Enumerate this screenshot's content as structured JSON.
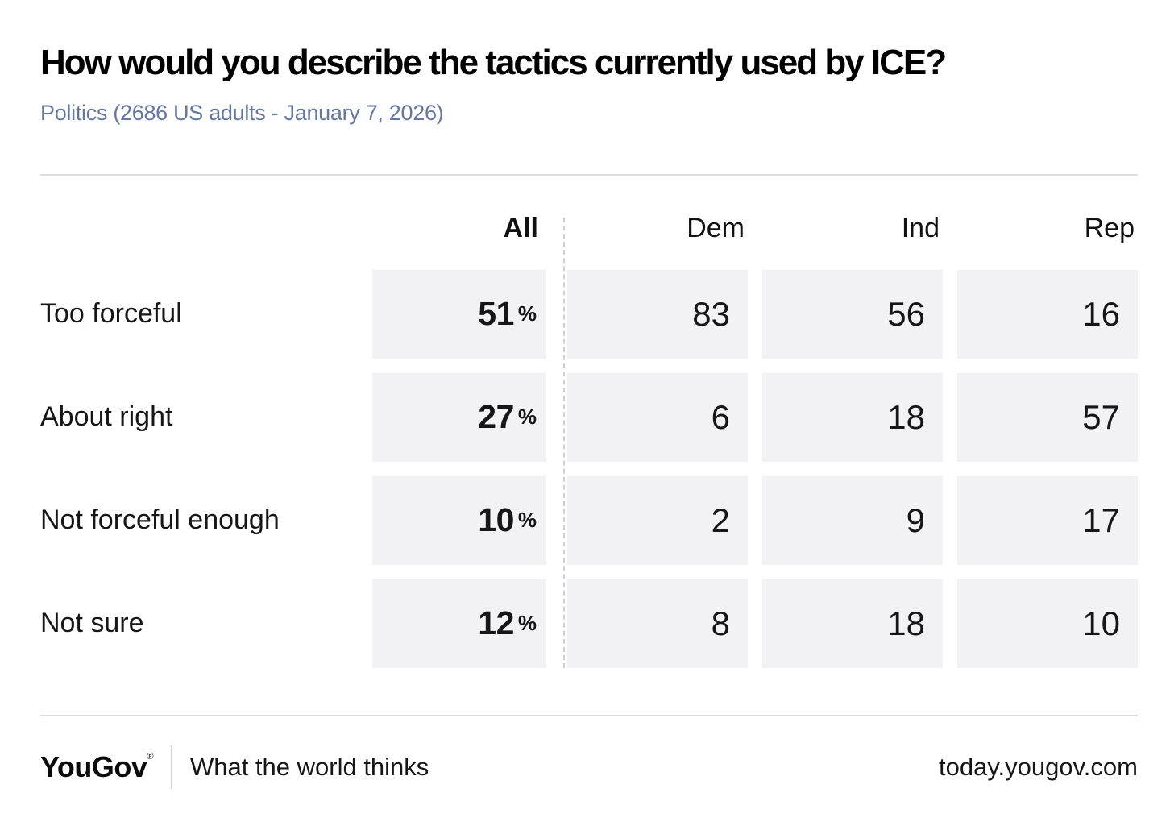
{
  "header": {
    "title": "How would you describe the tactics currently used by ICE?",
    "subtitle": "Politics (2686 US adults - January 7, 2026)"
  },
  "table": {
    "columns": {
      "all": "All",
      "dem": "Dem",
      "ind": "Ind",
      "rep": "Rep"
    },
    "percent_sign": "%",
    "rows": [
      {
        "label": "Too forceful",
        "all": "51",
        "dem": "83",
        "ind": "56",
        "rep": "16"
      },
      {
        "label": "About right",
        "all": "27",
        "dem": "6",
        "ind": "18",
        "rep": "57"
      },
      {
        "label": "Not forceful enough",
        "all": "10",
        "dem": "2",
        "ind": "9",
        "rep": "17"
      },
      {
        "label": "Not sure",
        "all": "12",
        "dem": "8",
        "ind": "18",
        "rep": "10"
      }
    ]
  },
  "chart_data": {
    "type": "table",
    "title": "How would you describe the tactics currently used by ICE?",
    "subtitle": "Politics (2686 US adults - January 7, 2026)",
    "categories": [
      "Too forceful",
      "About right",
      "Not forceful enough",
      "Not sure"
    ],
    "series": [
      {
        "name": "All",
        "values": [
          51,
          27,
          10,
          12
        ],
        "unit": "%"
      },
      {
        "name": "Dem",
        "values": [
          83,
          6,
          2,
          8
        ]
      },
      {
        "name": "Ind",
        "values": [
          56,
          18,
          9,
          18
        ]
      },
      {
        "name": "Rep",
        "values": [
          16,
          57,
          17,
          10
        ]
      }
    ],
    "legend_position": "top",
    "grid": false
  },
  "footer": {
    "logo": "YouGov",
    "registered": "®",
    "tagline": "What the world thinks",
    "url": "today.yougov.com"
  },
  "colors": {
    "text": "#111111",
    "subtitle": "#64779e",
    "cell_bg": "#f2f2f4",
    "divider": "#dadcdf",
    "dash": "#cdd0d4"
  }
}
